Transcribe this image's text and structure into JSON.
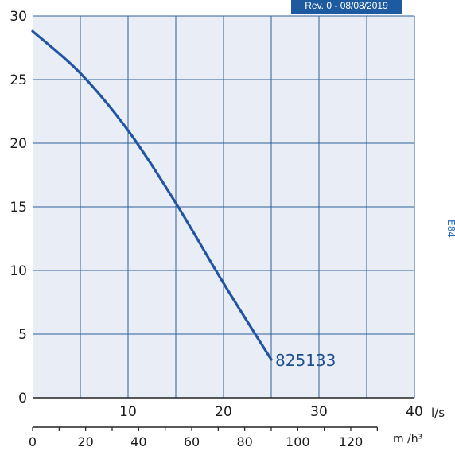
{
  "header": {
    "revision": "Rev. 0 - 08/08/2019"
  },
  "side_mark": {
    "text": "E84"
  },
  "colors": {
    "curve": "#2155a3",
    "grid": "#2f5f9b",
    "plot_bg": "#e9eef6",
    "badge": "#1e5aa0",
    "curve_label": "#1d4e8f"
  },
  "chart_data": {
    "type": "line",
    "title": "",
    "xlabel": "",
    "ylabel": "",
    "x_unit_primary": "l/s",
    "x_unit_secondary": "m /h³",
    "xlim": [
      0,
      40
    ],
    "ylim": [
      0,
      30
    ],
    "y_ticks": [
      0,
      5,
      10,
      15,
      20,
      25,
      30
    ],
    "x_ticks_primary": [
      10,
      20,
      30,
      40
    ],
    "x_ticks_secondary": [
      0,
      20,
      40,
      60,
      80,
      100,
      120
    ],
    "secondary_axis_units_per_primary": 3.6,
    "grid": true,
    "series": [
      {
        "name": "825133",
        "x": [
          0,
          5,
          10,
          15,
          20,
          25
        ],
        "y": [
          28.8,
          25.5,
          21,
          15.3,
          9,
          3
        ]
      }
    ]
  }
}
